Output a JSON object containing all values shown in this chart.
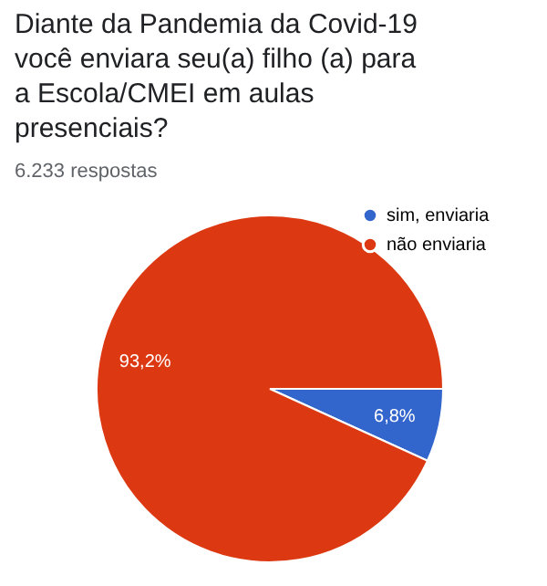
{
  "chart_data": {
    "type": "pie",
    "title": "Diante da Pandemia da Covid-19 você enviara seu(a) filho (a) para a Escola/CMEI em aulas presenciais?",
    "subtitle": "6.233 respostas",
    "categories": [
      "sim, enviaria",
      "não enviaria"
    ],
    "values": [
      6.8,
      93.2
    ],
    "colors": [
      "#3366cc",
      "#dc3912"
    ],
    "value_labels": [
      "6,8%",
      "93,2%"
    ],
    "legend": "top right"
  }
}
